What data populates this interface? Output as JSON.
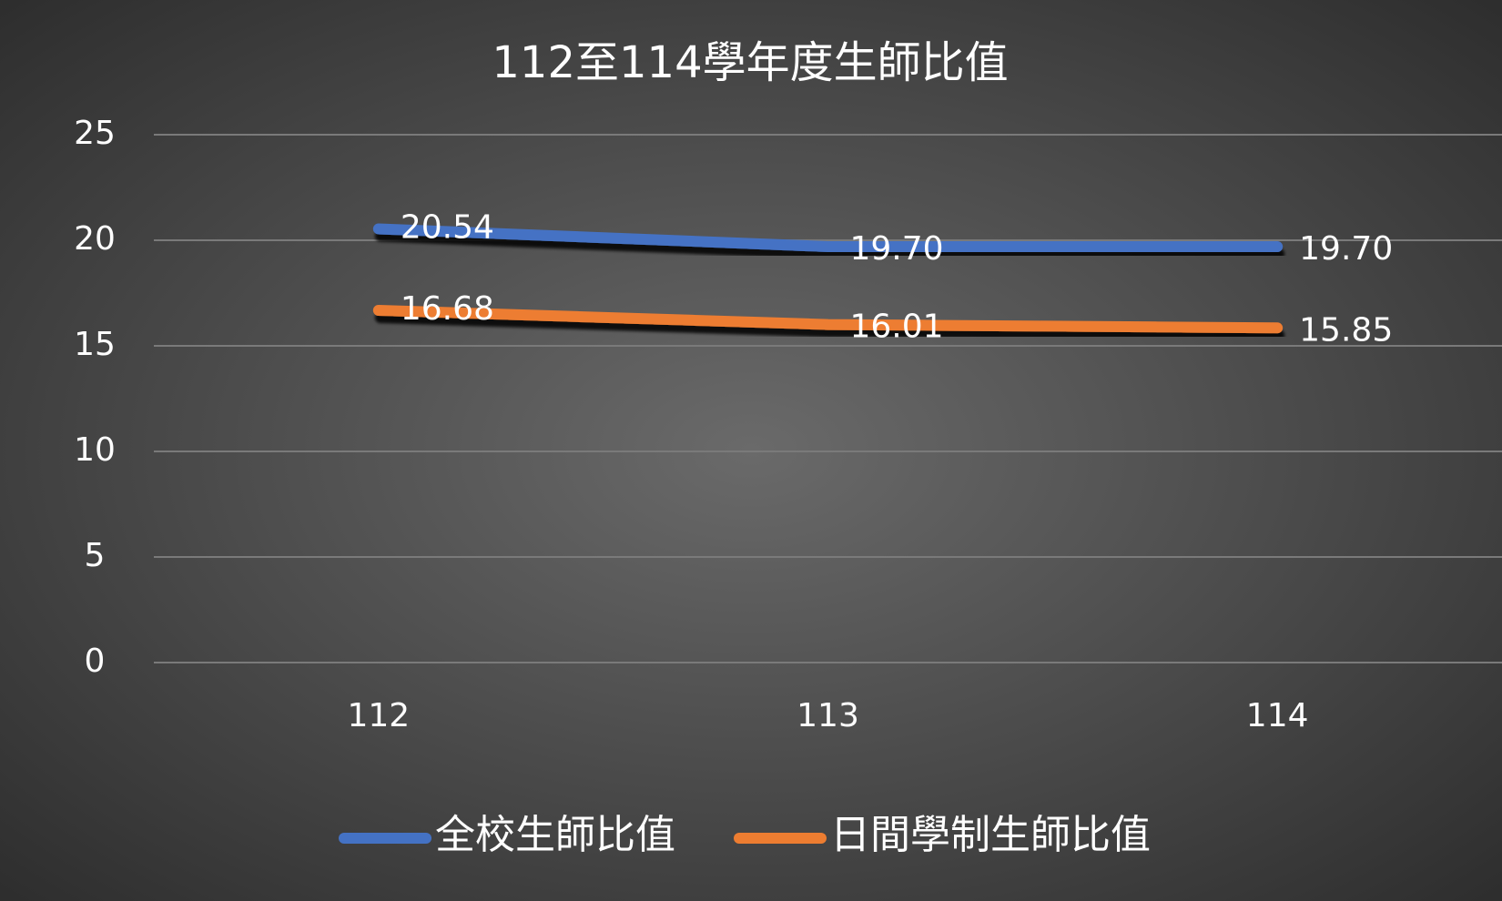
{
  "chart_data": {
    "type": "line",
    "title": "112至114學年度生師比值",
    "categories": [
      "112",
      "113",
      "114"
    ],
    "series": [
      {
        "name": "全校生師比值",
        "color": "#4472c4",
        "values": [
          20.54,
          19.7,
          19.7
        ],
        "value_labels": [
          "20.54",
          "19.70",
          "19.70"
        ]
      },
      {
        "name": "日間學制生師比值",
        "color": "#ed7d31",
        "values": [
          16.68,
          16.01,
          15.85
        ],
        "value_labels": [
          "16.68",
          "16.01",
          "15.85"
        ]
      }
    ],
    "ylim": [
      0,
      25
    ],
    "yticks": [
      0,
      5,
      10,
      15,
      20,
      25
    ],
    "grid": true,
    "legend": "bottom"
  }
}
